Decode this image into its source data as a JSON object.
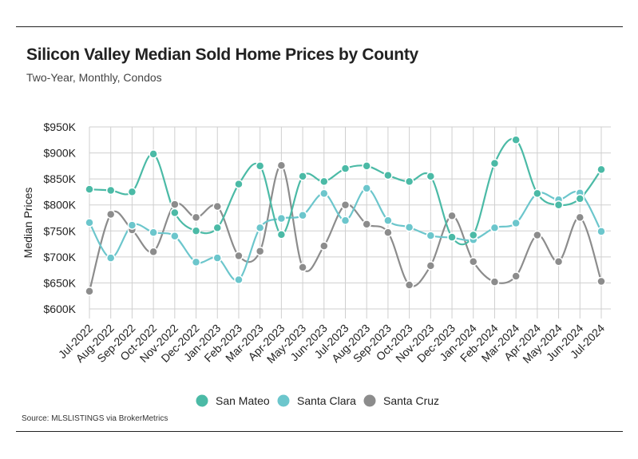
{
  "header": {
    "title": "Silicon Valley Median Sold Home Prices by County",
    "subtitle": "Two-Year, Monthly, Condos"
  },
  "footer": {
    "source": "Source:  MLSLISTINGS via BrokerMetrics"
  },
  "chart_data": {
    "type": "line",
    "title": "Silicon Valley Median Sold Home Prices by County",
    "subtitle": "Two-Year, Monthly, Condos",
    "xlabel": "",
    "ylabel": "Median Prices",
    "ylim": [
      600000,
      950000
    ],
    "yticks": [
      600000,
      650000,
      700000,
      750000,
      800000,
      850000,
      900000,
      950000
    ],
    "ytick_labels": [
      "$600K",
      "$650K",
      "$700K",
      "$750K",
      "$800K",
      "$850K",
      "$900K",
      "$950K"
    ],
    "grid": "both",
    "legend_position": "bottom",
    "categories": [
      "Jul-2022",
      "Aug-2022",
      "Sep-2022",
      "Oct-2022",
      "Nov-2022",
      "Dec-2022",
      "Jan-2023",
      "Feb-2023",
      "Mar-2023",
      "Apr-2023",
      "May-2023",
      "Jun-2023",
      "Jul-2023",
      "Aug-2023",
      "Sep-2023",
      "Oct-2023",
      "Nov-2023",
      "Dec-2023",
      "Jan-2024",
      "Feb-2024",
      "Mar-2024",
      "Apr-2024",
      "May-2024",
      "Jun-2024",
      "Jul-2024"
    ],
    "series": [
      {
        "name": "San Mateo",
        "color": "#4bbaa6",
        "values": [
          830000,
          828000,
          825000,
          898000,
          785000,
          750000,
          756000,
          840000,
          875000,
          743000,
          855000,
          845000,
          870000,
          875000,
          857000,
          845000,
          855000,
          738000,
          742000,
          880000,
          925000,
          822000,
          800000,
          812000,
          868000
        ]
      },
      {
        "name": "Santa Clara",
        "color": "#6cc6cc",
        "values": [
          766000,
          698000,
          761000,
          747000,
          740000,
          690000,
          698000,
          656000,
          756000,
          774000,
          780000,
          822000,
          770000,
          832000,
          770000,
          757000,
          741000,
          737000,
          733000,
          756000,
          765000,
          822000,
          810000,
          823000,
          749000
        ]
      },
      {
        "name": "Santa Cruz",
        "color": "#8c8c8c",
        "values": [
          634000,
          782000,
          752000,
          710000,
          801000,
          776000,
          797000,
          702000,
          711000,
          876000,
          680000,
          721000,
          800000,
          763000,
          747000,
          646000,
          683000,
          779000,
          691000,
          652000,
          663000,
          742000,
          691000,
          776000,
          653000
        ]
      }
    ]
  }
}
